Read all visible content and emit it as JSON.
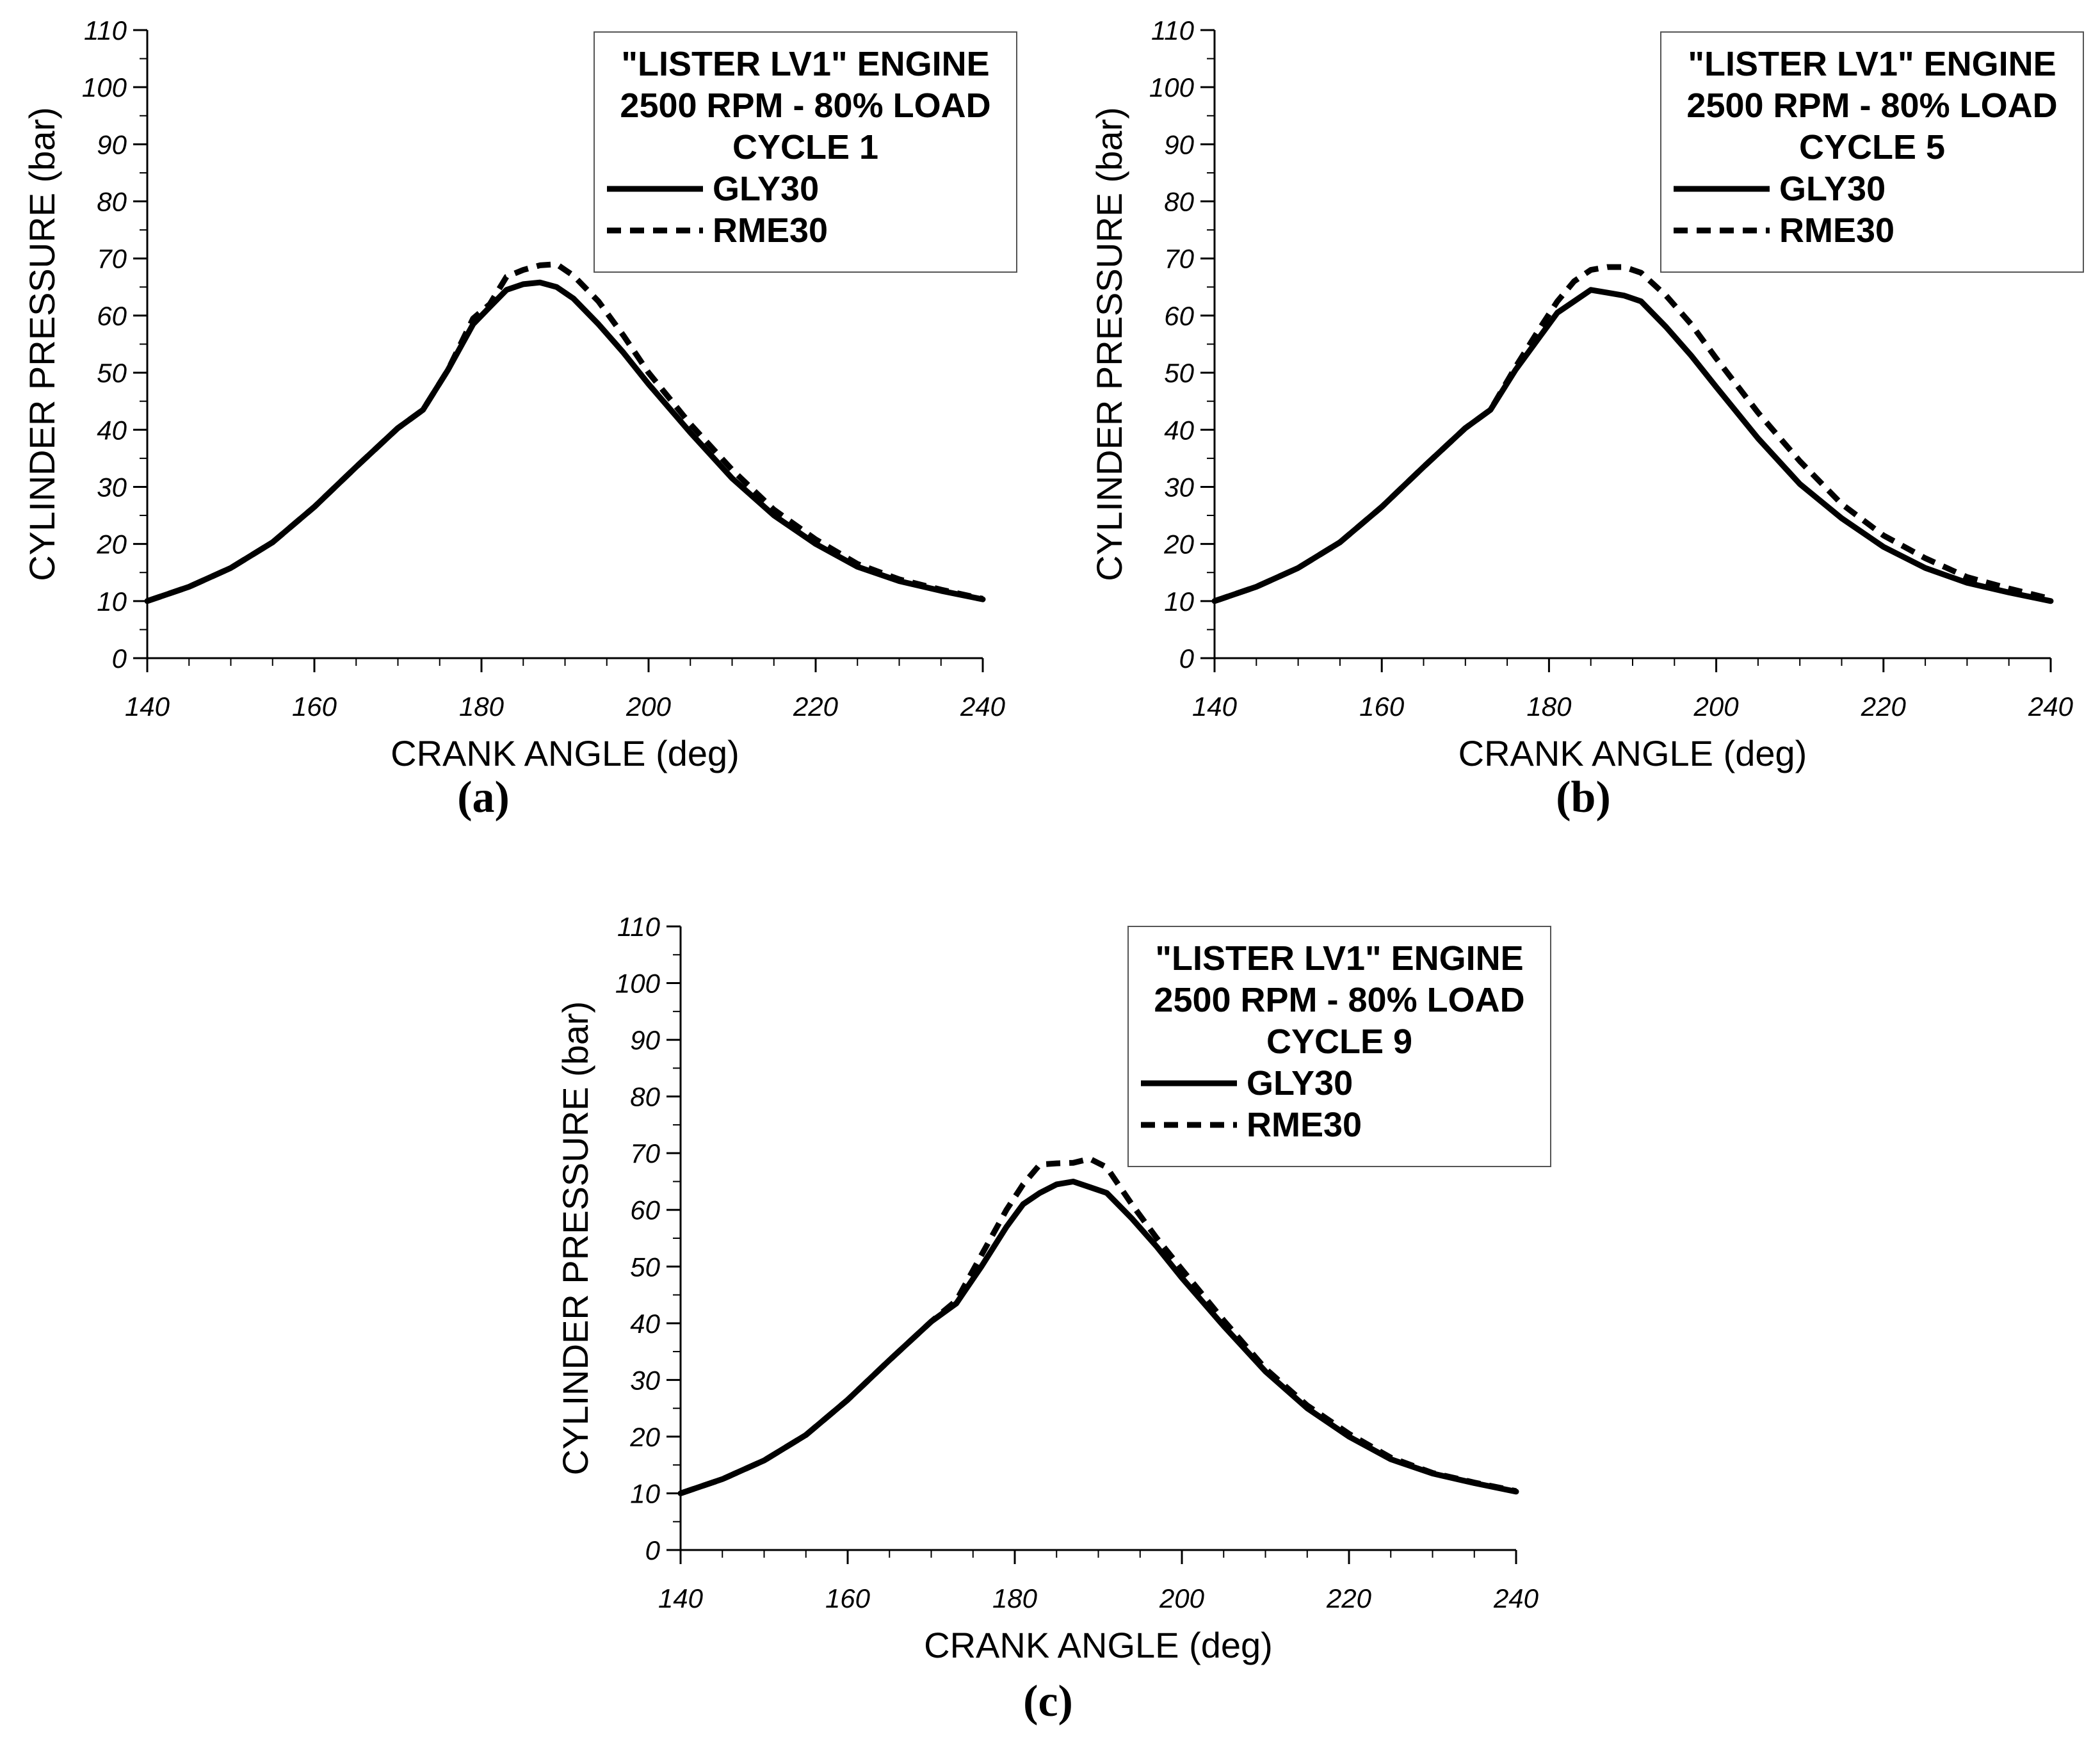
{
  "figure": {
    "colors": {
      "line": "#000000",
      "background": "#ffffff"
    }
  },
  "chart_data": [
    {
      "type": "line",
      "panel_label": "(a)",
      "legend_title": [
        "\"LISTER LV1\" ENGINE",
        "2500 RPM - 80% LOAD",
        "CYCLE 1"
      ],
      "xlabel": "CRANK ANGLE (deg)",
      "ylabel": "CYLINDER PRESSURE (bar)",
      "xlim": [
        140,
        240
      ],
      "ylim": [
        0,
        110
      ],
      "xticks": [
        140,
        160,
        180,
        200,
        220,
        240
      ],
      "yticks": [
        0,
        10,
        20,
        30,
        40,
        50,
        60,
        70,
        80,
        90,
        100,
        110
      ],
      "legend_position": "top-right",
      "series": [
        {
          "name": "GLY30",
          "style": "solid",
          "x": [
            140,
            145,
            150,
            155,
            160,
            165,
            170,
            173,
            176,
            179,
            181,
            183,
            185,
            187,
            189,
            191,
            194,
            197,
            200,
            205,
            210,
            215,
            220,
            225,
            230,
            235,
            240
          ],
          "y": [
            10,
            12.5,
            15.8,
            20.3,
            26.5,
            33.5,
            40.3,
            43.5,
            50.5,
            58.5,
            61.5,
            64.5,
            65.5,
            65.8,
            65.0,
            63.0,
            58.5,
            53.5,
            48.0,
            39.5,
            31.5,
            25.0,
            20.0,
            16.0,
            13.5,
            11.8,
            10.3
          ]
        },
        {
          "name": "RME30",
          "style": "dashed",
          "x": [
            140,
            145,
            150,
            155,
            160,
            165,
            170,
            173,
            176,
            179,
            181,
            183,
            185,
            187,
            189,
            191,
            194,
            197,
            200,
            205,
            210,
            215,
            220,
            225,
            230,
            235,
            240
          ],
          "y": [
            10,
            12.5,
            15.8,
            20.3,
            26.5,
            33.5,
            40.3,
            43.5,
            50.5,
            59.5,
            62.0,
            66.8,
            68.0,
            68.8,
            69.0,
            67.0,
            62.5,
            56.5,
            50.0,
            41.0,
            33.0,
            26.0,
            20.8,
            16.5,
            13.8,
            12.0,
            10.4
          ]
        }
      ]
    },
    {
      "type": "line",
      "panel_label": "(b)",
      "legend_title": [
        "\"LISTER LV1\" ENGINE",
        "2500 RPM - 80% LOAD",
        "CYCLE 5"
      ],
      "xlabel": "CRANK ANGLE (deg)",
      "ylabel": "CYLINDER PRESSURE (bar)",
      "xlim": [
        140,
        240
      ],
      "ylim": [
        0,
        110
      ],
      "xticks": [
        140,
        160,
        180,
        200,
        220,
        240
      ],
      "yticks": [
        0,
        10,
        20,
        30,
        40,
        50,
        60,
        70,
        80,
        90,
        100,
        110
      ],
      "legend_position": "top-right",
      "series": [
        {
          "name": "GLY30",
          "style": "solid",
          "x": [
            140,
            145,
            150,
            155,
            160,
            165,
            170,
            173,
            176,
            179,
            181,
            183,
            185,
            187,
            189,
            191,
            194,
            197,
            200,
            205,
            210,
            215,
            220,
            225,
            230,
            235,
            240
          ],
          "y": [
            10,
            12.5,
            15.8,
            20.3,
            26.5,
            33.5,
            40.3,
            43.5,
            50.5,
            56.5,
            60.5,
            62.5,
            64.5,
            64.0,
            63.5,
            62.5,
            58.0,
            53.0,
            47.5,
            38.5,
            30.5,
            24.5,
            19.5,
            15.8,
            13.2,
            11.5,
            10.0
          ]
        },
        {
          "name": "RME30",
          "style": "dashed",
          "x": [
            140,
            145,
            150,
            155,
            160,
            165,
            170,
            173,
            176,
            179,
            181,
            183,
            185,
            187,
            189,
            191,
            194,
            197,
            200,
            205,
            210,
            215,
            220,
            225,
            230,
            235,
            240
          ],
          "y": [
            10,
            12.5,
            15.8,
            20.3,
            26.5,
            33.5,
            40.3,
            43.5,
            51.0,
            58.0,
            62.5,
            66.0,
            68.0,
            68.5,
            68.5,
            67.5,
            63.5,
            58.5,
            52.5,
            43.0,
            34.5,
            27.0,
            21.5,
            17.5,
            14.2,
            12.2,
            10.4
          ]
        }
      ]
    },
    {
      "type": "line",
      "panel_label": "(c)",
      "legend_title": [
        "\"LISTER LV1\" ENGINE",
        "2500 RPM - 80% LOAD",
        "CYCLE 9"
      ],
      "xlabel": "CRANK ANGLE (deg)",
      "ylabel": "CYLINDER PRESSURE (bar)",
      "xlim": [
        140,
        240
      ],
      "ylim": [
        0,
        110
      ],
      "xticks": [
        140,
        160,
        180,
        200,
        220,
        240
      ],
      "yticks": [
        0,
        10,
        20,
        30,
        40,
        50,
        60,
        70,
        80,
        90,
        100,
        110
      ],
      "legend_position": "top-right",
      "series": [
        {
          "name": "GLY30",
          "style": "solid",
          "x": [
            140,
            145,
            150,
            155,
            160,
            165,
            170,
            173,
            176,
            179,
            181,
            183,
            185,
            187,
            189,
            191,
            194,
            197,
            200,
            205,
            210,
            215,
            220,
            225,
            230,
            235,
            240
          ],
          "y": [
            10,
            12.5,
            15.8,
            20.3,
            26.5,
            33.5,
            40.3,
            43.5,
            50.0,
            57.0,
            61.0,
            63.0,
            64.5,
            65.0,
            64.0,
            63.0,
            58.5,
            53.5,
            48.0,
            39.5,
            31.5,
            25.0,
            20.0,
            16.0,
            13.5,
            11.8,
            10.3
          ]
        },
        {
          "name": "RME30",
          "style": "dashed",
          "x": [
            140,
            145,
            150,
            155,
            160,
            165,
            170,
            173,
            176,
            179,
            181,
            183,
            185,
            187,
            189,
            191,
            194,
            197,
            200,
            205,
            210,
            215,
            220,
            225,
            230,
            235,
            240
          ],
          "y": [
            10,
            12.5,
            15.8,
            20.3,
            26.5,
            33.5,
            40.3,
            44.0,
            52.0,
            60.0,
            64.5,
            68.0,
            68.2,
            68.3,
            69.0,
            67.5,
            61.0,
            55.0,
            49.5,
            40.5,
            32.0,
            25.5,
            20.5,
            16.3,
            13.6,
            11.9,
            10.4
          ]
        }
      ]
    }
  ]
}
